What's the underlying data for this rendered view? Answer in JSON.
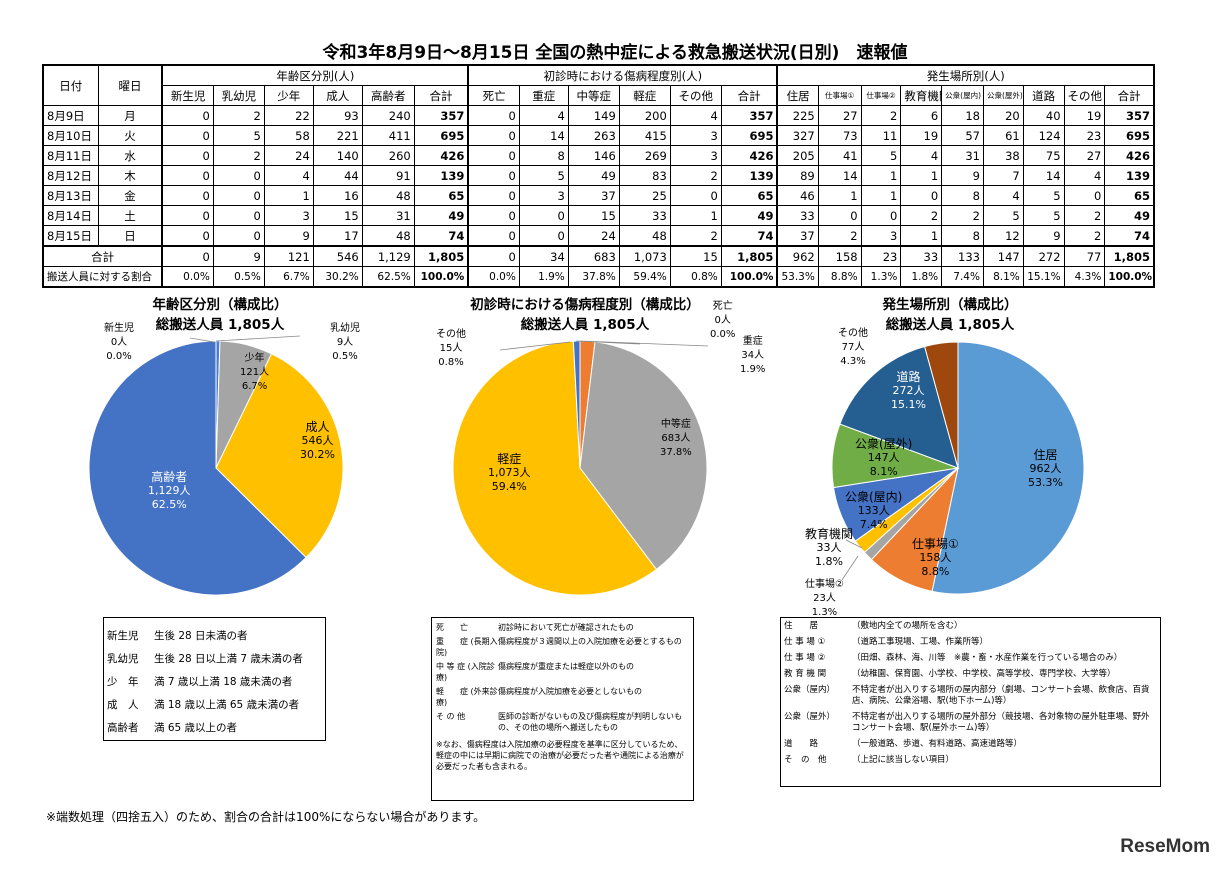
{
  "title": "令和3年8月9日～8月15日 全国の熱中症による救急搬送状況(日別)　速報値",
  "table": {
    "h_date": "日付",
    "h_dow": "曜日",
    "group_age": "年齢区分別(人)",
    "group_severity": "初診時における傷病程度別(人)",
    "group_place": "発生場所別(人)",
    "age_cols": [
      "新生児",
      "乳幼児",
      "少年",
      "成人",
      "高齢者",
      "合計"
    ],
    "sev_cols": [
      "死亡",
      "重症",
      "中等症",
      "軽症",
      "その他",
      "合計"
    ],
    "place_cols": [
      "住居",
      "仕事場①",
      "仕事場②",
      "教育機関",
      "公衆(屋内)",
      "公衆(屋外)",
      "道路",
      "その他",
      "合計"
    ],
    "rows": [
      {
        "date": "8月9日",
        "dow": "月",
        "age": [
          "0",
          "2",
          "22",
          "93",
          "240",
          "357"
        ],
        "sev": [
          "0",
          "4",
          "149",
          "200",
          "4",
          "357"
        ],
        "place": [
          "225",
          "27",
          "2",
          "6",
          "18",
          "20",
          "40",
          "19",
          "357"
        ]
      },
      {
        "date": "8月10日",
        "dow": "火",
        "age": [
          "0",
          "5",
          "58",
          "221",
          "411",
          "695"
        ],
        "sev": [
          "0",
          "14",
          "263",
          "415",
          "3",
          "695"
        ],
        "place": [
          "327",
          "73",
          "11",
          "19",
          "57",
          "61",
          "124",
          "23",
          "695"
        ]
      },
      {
        "date": "8月11日",
        "dow": "水",
        "age": [
          "0",
          "2",
          "24",
          "140",
          "260",
          "426"
        ],
        "sev": [
          "0",
          "8",
          "146",
          "269",
          "3",
          "426"
        ],
        "place": [
          "205",
          "41",
          "5",
          "4",
          "31",
          "38",
          "75",
          "27",
          "426"
        ]
      },
      {
        "date": "8月12日",
        "dow": "木",
        "age": [
          "0",
          "0",
          "4",
          "44",
          "91",
          "139"
        ],
        "sev": [
          "0",
          "5",
          "49",
          "83",
          "2",
          "139"
        ],
        "place": [
          "89",
          "14",
          "1",
          "1",
          "9",
          "7",
          "14",
          "4",
          "139"
        ]
      },
      {
        "date": "8月13日",
        "dow": "金",
        "age": [
          "0",
          "0",
          "1",
          "16",
          "48",
          "65"
        ],
        "sev": [
          "0",
          "3",
          "37",
          "25",
          "0",
          "65"
        ],
        "place": [
          "46",
          "1",
          "1",
          "0",
          "8",
          "4",
          "5",
          "0",
          "65"
        ]
      },
      {
        "date": "8月14日",
        "dow": "土",
        "age": [
          "0",
          "0",
          "3",
          "15",
          "31",
          "49"
        ],
        "sev": [
          "0",
          "0",
          "15",
          "33",
          "1",
          "49"
        ],
        "place": [
          "33",
          "0",
          "0",
          "2",
          "2",
          "5",
          "5",
          "2",
          "49"
        ]
      },
      {
        "date": "8月15日",
        "dow": "日",
        "age": [
          "0",
          "0",
          "9",
          "17",
          "48",
          "74"
        ],
        "sev": [
          "0",
          "0",
          "24",
          "48",
          "2",
          "74"
        ],
        "place": [
          "37",
          "2",
          "3",
          "1",
          "8",
          "12",
          "9",
          "2",
          "74"
        ]
      }
    ],
    "total": {
      "label": "合計",
      "age": [
        "0",
        "9",
        "121",
        "546",
        "1,129",
        "1,805"
      ],
      "sev": [
        "0",
        "34",
        "683",
        "1,073",
        "15",
        "1,805"
      ],
      "place": [
        "962",
        "158",
        "23",
        "33",
        "133",
        "147",
        "272",
        "77",
        "1,805"
      ]
    },
    "pct": {
      "label": "搬送人員に対する割合",
      "age": [
        "0.0%",
        "0.5%",
        "6.7%",
        "30.2%",
        "62.5%",
        "100.0%"
      ],
      "sev": [
        "0.0%",
        "1.9%",
        "37.8%",
        "59.4%",
        "0.8%",
        "100.0%"
      ],
      "place": [
        "53.3%",
        "8.8%",
        "1.3%",
        "1.8%",
        "7.4%",
        "8.1%",
        "15.1%",
        "4.3%",
        "100.0%"
      ]
    }
  },
  "charts": {
    "age": {
      "title": "年齢区分別（構成比）",
      "subtitle": "総搬送人員 1,805人"
    },
    "severity": {
      "title": "初診時における傷病程度別（構成比）",
      "subtitle": "総搬送人員 1,805人"
    },
    "place": {
      "title": "発生場所別（構成比）",
      "subtitle": "総搬送人員 1,805人"
    }
  },
  "chart_data": [
    {
      "type": "pie",
      "title": "年齢区分別（構成比）",
      "subtitle": "総搬送人員 1,805人",
      "labels": [
        "新生児",
        "乳幼児",
        "少年",
        "成人",
        "高齢者"
      ],
      "values": [
        0,
        9,
        121,
        546,
        1129
      ],
      "value_labels": [
        "0人",
        "9人",
        "121人",
        "546人",
        "1,129人"
      ],
      "percents": [
        "0.0%",
        "0.5%",
        "6.7%",
        "30.2%",
        "62.5%"
      ],
      "colors": [
        "#3a6ec4",
        "#4a7fd0",
        "#a5a5a5",
        "#ffc000",
        "#4472c4"
      ]
    },
    {
      "type": "pie",
      "title": "初診時における傷病程度別（構成比）",
      "subtitle": "総搬送人員 1,805人",
      "labels": [
        "死亡",
        "重症",
        "中等症",
        "軽症",
        "その他"
      ],
      "values": [
        0,
        34,
        683,
        1073,
        15
      ],
      "value_labels": [
        "0人",
        "34人",
        "683人",
        "1,073人",
        "15人"
      ],
      "percents": [
        "0.0%",
        "1.9%",
        "37.8%",
        "59.4%",
        "0.8%"
      ],
      "colors": [
        "#264478",
        "#ed7d31",
        "#a5a5a5",
        "#ffc000",
        "#4472c4"
      ]
    },
    {
      "type": "pie",
      "title": "発生場所別（構成比）",
      "subtitle": "総搬送人員 1,805人",
      "labels": [
        "住居",
        "仕事場①",
        "仕事場②",
        "教育機関",
        "公衆(屋内)",
        "公衆(屋外)",
        "道路",
        "その他"
      ],
      "values": [
        962,
        158,
        23,
        33,
        133,
        147,
        272,
        77
      ],
      "value_labels": [
        "962人",
        "158人",
        "23人",
        "33人",
        "133人",
        "147人",
        "272人",
        "77人"
      ],
      "percents": [
        "53.3%",
        "8.8%",
        "1.3%",
        "1.8%",
        "7.4%",
        "8.1%",
        "15.1%",
        "4.3%"
      ],
      "colors": [
        "#5b9bd5",
        "#ed7d31",
        "#a5a5a5",
        "#ffc000",
        "#4472c4",
        "#70ad47",
        "#255e91",
        "#9e480e"
      ]
    }
  ],
  "legend_age": [
    {
      "k": "新生児",
      "v": "生後 28 日未満の者"
    },
    {
      "k": "乳幼児",
      "v": "生後 28 日以上満 7 歳未満の者"
    },
    {
      "k": "少　年",
      "v": "満 7 歳以上満 18 歳未満の者"
    },
    {
      "k": "成　人",
      "v": "満 18 歳以上満 65 歳未満の者"
    },
    {
      "k": "高齢者",
      "v": "満 65 歳以上の者"
    }
  ],
  "legend_severity": [
    {
      "k": "死　　亡",
      "v": "初診時において死亡が確認されたもの"
    },
    {
      "k": "重　　症 (長期入院)",
      "v": "傷病程度が３週間以上の入院加療を必要とするもの"
    },
    {
      "k": "中 等 症 (入院診療)",
      "v": "傷病程度が重症または軽症以外のもの"
    },
    {
      "k": "軽　　症 (外来診療)",
      "v": "傷病程度が入院加療を必要としないもの"
    },
    {
      "k": "そ の 他",
      "v": "医師の診断がないもの及び傷病程度が判明しないもの、その他の場所へ搬送したもの"
    }
  ],
  "legend_severity_note": "※なお、傷病程度は入院加療の必要程度を基準に区分しているため、軽症の中には早期に病院での治療が必要だった者や通院による治療が必要だった者も含まれる。",
  "legend_place": [
    {
      "k": "住　　居",
      "v": "（敷地内全ての場所を含む）"
    },
    {
      "k": "仕 事 場 ①",
      "v": "（道路工事現場、工場、作業所等）"
    },
    {
      "k": "仕 事 場 ②",
      "v": "（田畑、森林、海、川等　※農・畜・水産作業を行っている場合のみ）"
    },
    {
      "k": "教 育 機 関",
      "v": "（幼稚園、保育園、小学校、中学校、高等学校、専門学校、大学等）"
    },
    {
      "k": "公衆（屋内）",
      "v": "不特定者が出入りする場所の屋内部分（劇場、コンサート会場、飲食店、百貨店、病院、公衆浴場、駅(地下ホーム)等）"
    },
    {
      "k": "公衆（屋外）",
      "v": "不特定者が出入りする場所の屋外部分（競技場、各対象物の屋外駐車場、野外コンサート会場、駅(屋外ホーム)等）"
    },
    {
      "k": "道　　路",
      "v": "（一般道路、歩道、有料道路、高速道路等）"
    },
    {
      "k": "そ　の　他",
      "v": "（上記に該当しない項目）"
    }
  ],
  "footnote": "※端数処理（四捨五入）のため、割合の合計は100%にならない場合があります。",
  "logo": "ReseMom"
}
